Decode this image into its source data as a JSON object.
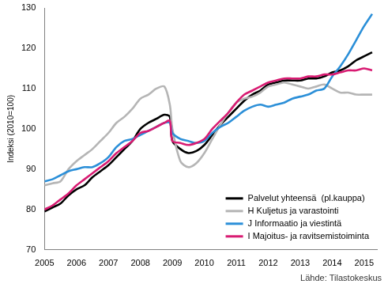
{
  "chart_data": {
    "type": "line",
    "ylabel": "Indeksi (2010=100)",
    "source": "Lähde: Tilastokeskus",
    "x": [
      2005,
      2005.25,
      2005.5,
      2005.75,
      2006,
      2006.25,
      2006.5,
      2006.75,
      2007,
      2007.25,
      2007.5,
      2007.75,
      2008,
      2008.25,
      2008.5,
      2008.75,
      2008.92,
      2009,
      2009.25,
      2009.5,
      2009.75,
      2010,
      2010.25,
      2010.5,
      2010.75,
      2011,
      2011.25,
      2011.5,
      2011.75,
      2012,
      2012.25,
      2012.5,
      2012.75,
      2013,
      2013.25,
      2013.5,
      2013.75,
      2014,
      2014.25,
      2014.5,
      2014.75,
      2015,
      2015.25
    ],
    "series": [
      {
        "name": "Palvelut yhteensä  (pl.kauppa)",
        "color": "#000000",
        "values": [
          79.5,
          80.5,
          81.5,
          83.5,
          85,
          86,
          88,
          89.5,
          91,
          93,
          95,
          97,
          100,
          101.5,
          102.5,
          103.5,
          103,
          97,
          95,
          94,
          94.5,
          96,
          98.5,
          101,
          103,
          105,
          107,
          108.5,
          109.5,
          111,
          111.5,
          112,
          112,
          112,
          112.5,
          112.5,
          113,
          114,
          114.5,
          115.5,
          117,
          118,
          119
        ]
      },
      {
        "name": "H Kuljetus ja varastointi",
        "color": "#b5b5b5",
        "values": [
          86,
          86.5,
          87,
          90,
          92,
          93.5,
          95,
          97,
          99,
          101.5,
          103,
          105,
          107.5,
          108.5,
          110,
          110.5,
          106,
          100,
          92,
          90.5,
          91.5,
          94,
          97.5,
          101,
          104,
          106.5,
          107.5,
          108,
          109,
          110.5,
          111,
          111.5,
          111,
          110.5,
          110,
          110.5,
          111,
          110,
          109,
          109,
          108.5,
          108.5,
          108.5
        ]
      },
      {
        "name": "J Informaatio ja viestintä",
        "color": "#2b8fd8",
        "values": [
          87,
          87.5,
          88.5,
          89.5,
          90,
          90.5,
          90.5,
          91.5,
          93,
          95.5,
          97,
          97.5,
          98.5,
          99.5,
          100.5,
          101.5,
          101.5,
          99,
          97.5,
          97,
          96.5,
          97,
          99,
          100.5,
          101.5,
          103,
          104.5,
          105.5,
          106,
          105.5,
          106,
          106.5,
          107.5,
          108,
          108.5,
          109.5,
          110,
          113,
          115.5,
          118.5,
          122,
          125.5,
          128.5
        ]
      },
      {
        "name": "I Majoitus- ja ravitsemistoiminta",
        "color": "#d81b72",
        "values": [
          80,
          81,
          82.5,
          84,
          86,
          87.5,
          89,
          90.5,
          92,
          94,
          95.5,
          97,
          99,
          99.5,
          100.5,
          101.5,
          102,
          97,
          96.5,
          96,
          96.5,
          97.5,
          100,
          102,
          104,
          106.5,
          108.5,
          109.5,
          110.5,
          111.5,
          112,
          112.5,
          112.5,
          112.5,
          113,
          113,
          113.5,
          113.5,
          114,
          114.5,
          114.5,
          115,
          114.5
        ]
      }
    ],
    "xlim": [
      2005,
      2015.4
    ],
    "xticks": [
      2005,
      2006,
      2007,
      2008,
      2009,
      2010,
      2011,
      2012,
      2013,
      2014,
      2015
    ],
    "ylim": [
      70,
      130
    ],
    "yticks": [
      70,
      80,
      90,
      100,
      110,
      120,
      130
    ],
    "grid": false,
    "legend": "lower right"
  }
}
